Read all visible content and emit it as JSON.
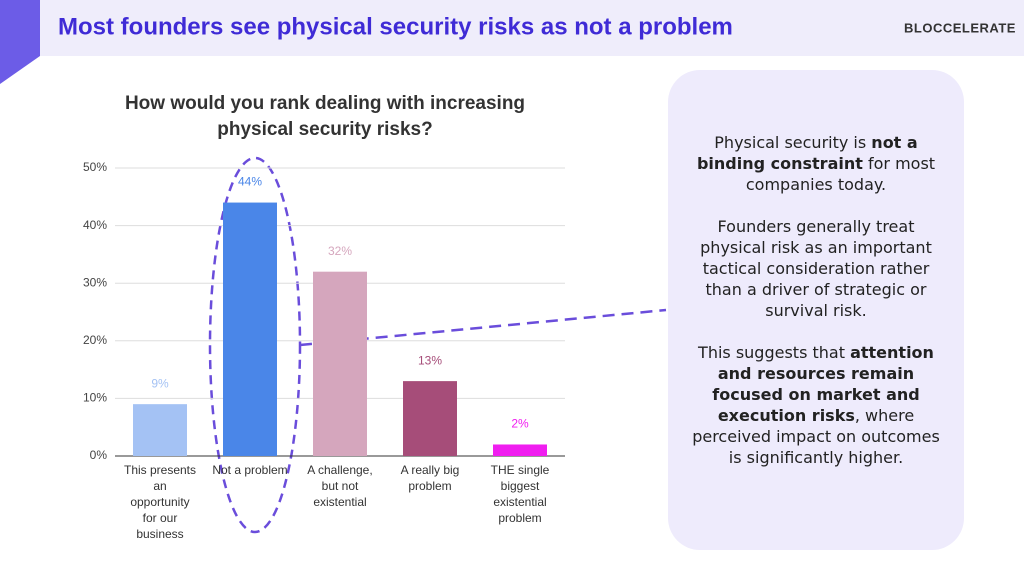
{
  "slide_title": "Most founders see physical security risks as not a problem",
  "logo": "BLOCCELERATE",
  "chart_data": {
    "type": "bar",
    "title": [
      "How would you rank dealing with increasing",
      "physical security risks?"
    ],
    "categories": [
      "This presents an opportunity for our business",
      "Not a problem",
      "A challenge, but not existential",
      "A really big problem",
      "THE single biggest existential problem"
    ],
    "values": [
      9,
      44,
      32,
      13,
      2
    ],
    "value_labels": [
      "9%",
      "44%",
      "32%",
      "13%",
      "2%"
    ],
    "colors": [
      "#a4c2f4",
      "#4a86e8",
      "#d5a6bd",
      "#a64d79",
      "#f01ef0"
    ],
    "ylim": [
      0,
      50
    ],
    "yticks": [
      {
        "value": 0,
        "label": "0%"
      },
      {
        "value": 10,
        "label": "10%"
      },
      {
        "value": 20,
        "label": "20%"
      },
      {
        "value": 30,
        "label": "30%"
      },
      {
        "value": 40,
        "label": "40%"
      },
      {
        "value": 50,
        "label": "50%"
      }
    ],
    "grid": true
  },
  "callout": {
    "paragraphs": [
      [
        {
          "text": "Physical security is ",
          "bold": false
        },
        {
          "text": "not a binding constraint",
          "bold": true
        },
        {
          "text": " for most companies today.",
          "bold": false
        }
      ],
      [
        {
          "text": "Founders generally treat physical risk as an important tactical consideration rather than a driver of strategic or survival risk.",
          "bold": false
        }
      ],
      [
        {
          "text": "This suggests that ",
          "bold": false
        },
        {
          "text": "attention and resources remain focused on market and execution risks",
          "bold": true
        },
        {
          "text": ", where perceived impact on outcomes is significantly higher.",
          "bold": false
        }
      ]
    ]
  }
}
